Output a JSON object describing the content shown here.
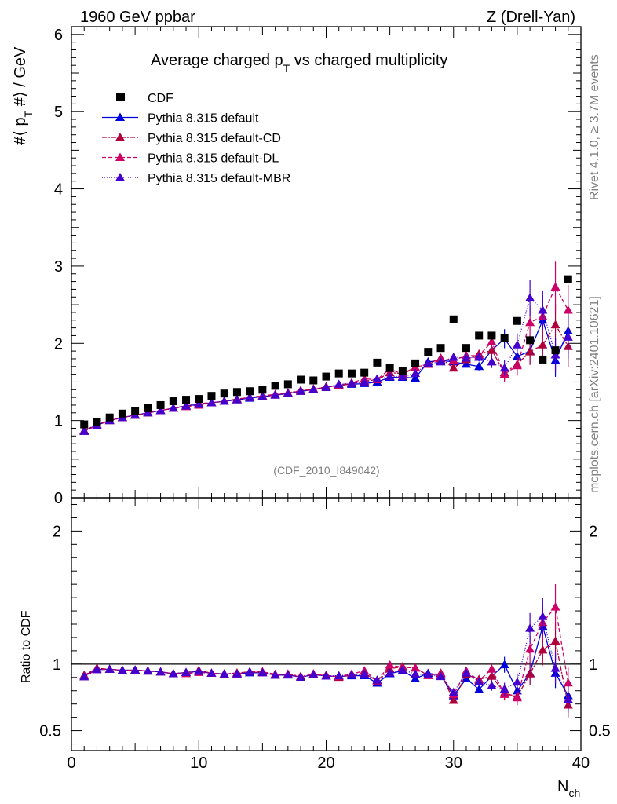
{
  "header": {
    "left_label": "1960 GeV ppbar",
    "right_label": "Z (Drell-Yan)",
    "side_label_rivet": "Rivet 4.1.0, ≥ 3.7M events",
    "side_label_mcplots": "mcplots.cern.ch [arXiv:2401.10621]"
  },
  "chart_data": {
    "type": "scatter",
    "title": "Average charged p_T vs charged multiplicity",
    "title_main": "Average charged p",
    "title_sub": "T",
    "title_rest": " vs charged multiplicity",
    "ylabel_main": "#⟨ p",
    "ylabel_sub": "T",
    "ylabel_rest": " #⟩ / GeV",
    "xlabel_main": "N",
    "xlabel_sub": "ch",
    "ratio_ylabel": "Ratio to CDF",
    "watermark": "(CDF_2010_I849042)",
    "xlim": [
      0,
      40
    ],
    "ylim": [
      0,
      6.1
    ],
    "ratio_ylim": [
      0.35,
      2.25
    ],
    "x_ticks": [
      0,
      10,
      20,
      30,
      40
    ],
    "y_ticks": [
      0,
      1,
      2,
      3,
      4,
      5,
      6
    ],
    "ratio_ticks": [
      0.5,
      1,
      2
    ],
    "x": [
      1,
      2,
      3,
      4,
      5,
      6,
      7,
      8,
      9,
      10,
      11,
      12,
      13,
      14,
      15,
      16,
      17,
      18,
      19,
      20,
      21,
      22,
      23,
      24,
      25,
      26,
      27,
      28,
      29,
      30,
      31,
      32,
      33,
      34,
      35,
      36,
      37,
      38,
      39
    ],
    "reference": {
      "name": "CDF",
      "color": "#000000",
      "values": [
        0.95,
        0.98,
        1.04,
        1.09,
        1.12,
        1.16,
        1.2,
        1.25,
        1.27,
        1.28,
        1.32,
        1.35,
        1.37,
        1.38,
        1.4,
        1.45,
        1.47,
        1.53,
        1.52,
        1.57,
        1.61,
        1.61,
        1.62,
        1.75,
        1.68,
        1.64,
        1.74,
        1.89,
        1.94,
        2.31,
        1.94,
        2.1,
        2.1,
        2.07,
        2.29,
        2.04,
        1.79,
        1.91,
        2.83
      ]
    },
    "series": [
      {
        "name": "Pythia 8.315 default",
        "color": "#0000dd",
        "dash": "",
        "values": [
          0.87,
          0.94,
          1.0,
          1.04,
          1.07,
          1.1,
          1.13,
          1.16,
          1.19,
          1.21,
          1.23,
          1.25,
          1.27,
          1.29,
          1.31,
          1.33,
          1.35,
          1.38,
          1.4,
          1.43,
          1.46,
          1.47,
          1.48,
          1.5,
          1.56,
          1.56,
          1.55,
          1.76,
          1.78,
          1.76,
          1.73,
          1.7,
          1.91,
          2.06,
          1.83,
          1.9,
          2.3,
          1.78,
          2.16
        ]
      },
      {
        "name": "Pythia 8.315 default-CD",
        "color": "#b0003c",
        "dash": "6,2,2,2",
        "values": [
          0.87,
          0.95,
          1.0,
          1.04,
          1.07,
          1.1,
          1.13,
          1.16,
          1.19,
          1.22,
          1.23,
          1.25,
          1.28,
          1.3,
          1.31,
          1.33,
          1.36,
          1.39,
          1.4,
          1.44,
          1.45,
          1.48,
          1.51,
          1.53,
          1.62,
          1.61,
          1.69,
          1.73,
          1.81,
          1.68,
          1.79,
          1.86,
          1.91,
          1.62,
          1.73,
          1.89,
          1.98,
          2.24,
          1.96
        ]
      },
      {
        "name": "Pythia 8.315 default-DL",
        "color": "#cc0066",
        "dash": "5,3",
        "values": [
          0.86,
          0.94,
          1.0,
          1.04,
          1.07,
          1.1,
          1.13,
          1.16,
          1.18,
          1.2,
          1.23,
          1.25,
          1.27,
          1.3,
          1.32,
          1.34,
          1.36,
          1.38,
          1.41,
          1.43,
          1.46,
          1.49,
          1.54,
          1.53,
          1.67,
          1.6,
          1.69,
          1.73,
          1.8,
          1.78,
          1.84,
          1.84,
          2.02,
          1.6,
          1.71,
          2.27,
          2.35,
          2.73,
          2.43
        ]
      },
      {
        "name": "Pythia 8.315 default-MBR",
        "color": "#4400cc",
        "dash": "1,2",
        "values": [
          0.86,
          0.94,
          1.0,
          1.04,
          1.07,
          1.1,
          1.13,
          1.16,
          1.19,
          1.21,
          1.23,
          1.25,
          1.27,
          1.3,
          1.31,
          1.33,
          1.35,
          1.38,
          1.4,
          1.43,
          1.47,
          1.48,
          1.5,
          1.54,
          1.57,
          1.57,
          1.61,
          1.74,
          1.76,
          1.82,
          1.81,
          1.82,
          1.76,
          1.68,
          1.98,
          2.59,
          2.43,
          1.85,
          2.08
        ]
      }
    ]
  }
}
